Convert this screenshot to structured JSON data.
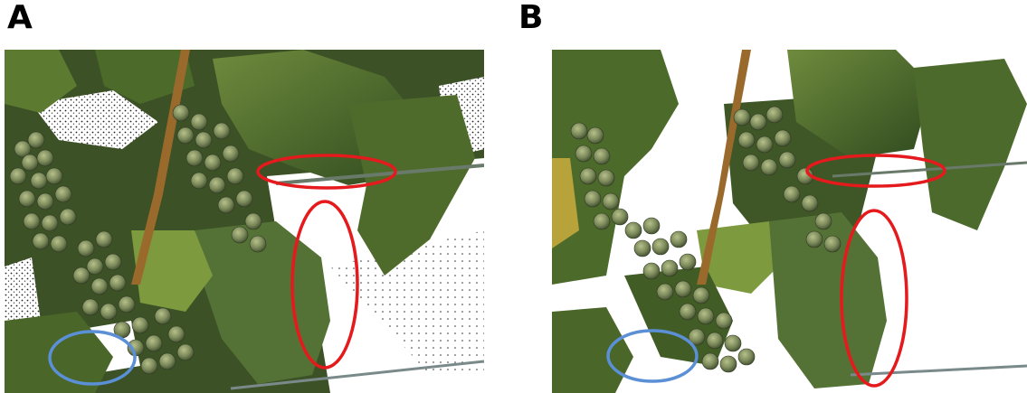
{
  "panels": [
    {
      "label": "A"
    },
    {
      "label": "B"
    }
  ],
  "colors": {
    "red_marker": "#e41a1c",
    "blue_marker": "#5b8fd6"
  }
}
